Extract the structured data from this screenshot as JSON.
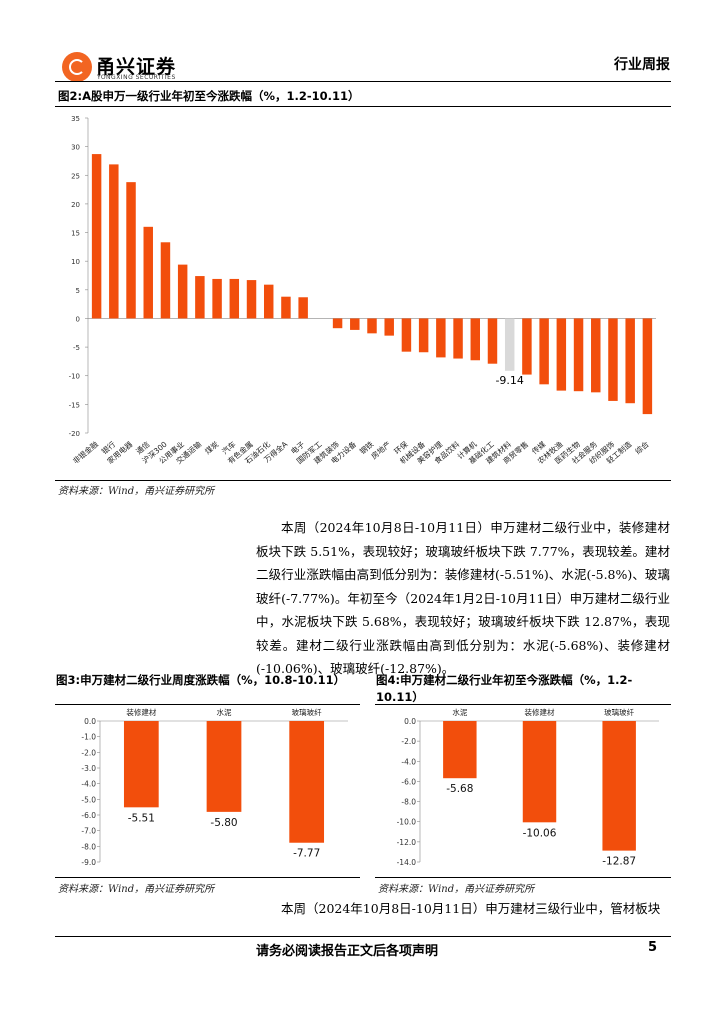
{
  "header": {
    "logo_cn": "甬兴证券",
    "logo_en": "YONGXING SECURITIES",
    "report_type": "行业周报"
  },
  "figure2": {
    "title": "图2:A股申万一级行业年初至今涨跌幅（%，1.2-10.11）",
    "source": "资料来源：Wind，甬兴证券研究所",
    "label_value": "-9.14"
  },
  "paragraph1": "本周（2024年10月8日-10月11日）申万建材二级行业中，装修建材板块下跌 5.51%，表现较好；玻璃玻纤板块下跌 7.77%，表现较差。建材二级行业涨跌幅由高到低分别为：装修建材(-5.51%)、水泥(-5.8%)、玻璃玻纤(-7.77%)。年初至今（2024年1月2日-10月11日）申万建材二级行业中，水泥板块下跌 5.68%，表现较好；玻璃玻纤板块下跌 12.87%，表现较差。建材二级行业涨跌幅由高到低分别为：水泥(-5.68%)、装修建材(-10.06%)、玻璃玻纤(-12.87%)。",
  "figure3": {
    "title": "图3:申万建材二级行业周度涨跌幅（%，10.8-10.11）",
    "source": "资料来源：Wind，甬兴证券研究所"
  },
  "figure4": {
    "title": "图4:申万建材二级行业年初至今涨跌幅（%，1.2-10.11）",
    "source": "资料来源：Wind，甬兴证券研究所"
  },
  "paragraph2": "本周（2024年10月8日-10月11日）申万建材三级行业中，管材板块",
  "footer": {
    "disclaimer": "请务必阅读报告正文后各项声明",
    "page": "5"
  },
  "colors": {
    "bar": "#f24e0c",
    "highlight": "#d9d9d9"
  },
  "chart_data": [
    {
      "id": "figure2",
      "type": "bar",
      "title": "图2:A股申万一级行业年初至今涨跌幅（%，1.2-10.11）",
      "categories": [
        "非银金融",
        "银行",
        "家用电器",
        "通信",
        "沪深300",
        "公用事业",
        "交通运输",
        "煤炭",
        "汽车",
        "有色金属",
        "石油石化",
        "万得全A",
        "电子",
        "国防军工",
        "建筑装饰",
        "电力设备",
        "钢铁",
        "房地产",
        "环保",
        "机械设备",
        "美容护理",
        "食品饮料",
        "计算机",
        "基础化工",
        "建筑材料",
        "商贸零售",
        "传媒",
        "农林牧渔",
        "医药生物",
        "社会服务",
        "纺织服饰",
        "轻工制造",
        "综合"
      ],
      "values": [
        28.7,
        26.9,
        23.8,
        16.0,
        13.3,
        9.4,
        7.4,
        6.9,
        6.9,
        6.7,
        5.9,
        3.8,
        3.7,
        0,
        -1.7,
        -2.0,
        -2.6,
        -3.0,
        -5.8,
        -5.9,
        -6.8,
        -7.0,
        -7.3,
        -7.9,
        -9.14,
        -9.8,
        -11.5,
        -12.6,
        -12.7,
        -12.9,
        -14.4,
        -14.8,
        -16.7
      ],
      "highlight_index": 24,
      "ylim": [
        -20,
        35
      ],
      "yticks": [
        35,
        30,
        25,
        20,
        15,
        10,
        5,
        0,
        -5,
        -10,
        -15,
        -20
      ]
    },
    {
      "id": "figure3",
      "type": "bar",
      "title": "图3:申万建材二级行业周度涨跌幅（%，10.8-10.11）",
      "categories": [
        "装修建材",
        "水泥",
        "玻璃玻纤"
      ],
      "values": [
        -5.51,
        -5.8,
        -7.77
      ],
      "value_labels": [
        "-5.51",
        "-5.80",
        "-7.77"
      ],
      "ylim": [
        -9,
        0
      ],
      "yticks": [
        "0.0",
        "-1.0",
        "-2.0",
        "-3.0",
        "-4.0",
        "-5.0",
        "-6.0",
        "-7.0",
        "-8.0",
        "-9.0"
      ]
    },
    {
      "id": "figure4",
      "type": "bar",
      "title": "图4:申万建材二级行业年初至今涨跌幅（%，1.2-10.11）",
      "categories": [
        "水泥",
        "装修建材",
        "玻璃玻纤"
      ],
      "values": [
        -5.68,
        -10.06,
        -12.87
      ],
      "value_labels": [
        "-5.68",
        "-10.06",
        "-12.87"
      ],
      "ylim": [
        -14,
        0
      ],
      "yticks": [
        "0.0",
        "-2.0",
        "-4.0",
        "-6.0",
        "-8.0",
        "-10.0",
        "-12.0",
        "-14.0"
      ]
    }
  ]
}
